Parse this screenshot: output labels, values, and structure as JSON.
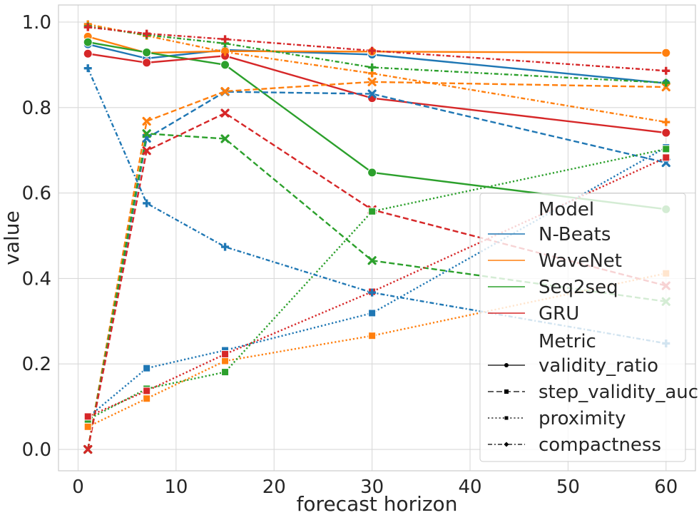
{
  "chart_data": {
    "type": "line",
    "title": "",
    "xlabel": "forecast horizon",
    "ylabel": "value",
    "x": [
      1,
      7,
      15,
      30,
      60
    ],
    "xlim": [
      -2,
      63
    ],
    "ylim": [
      -0.05,
      1.04
    ],
    "xticks": [
      0,
      10,
      20,
      30,
      40,
      50,
      60
    ],
    "yticks": [
      0.0,
      0.2,
      0.4,
      0.6,
      0.8,
      1.0
    ],
    "xtick_labels": [
      "0",
      "10",
      "20",
      "30",
      "40",
      "50",
      "60"
    ],
    "ytick_labels": [
      "0.0",
      "0.2",
      "0.4",
      "0.6",
      "0.8",
      "1.0"
    ],
    "grid": true,
    "legend_position": "right",
    "models": [
      {
        "name": "N-Beats",
        "color": "#1f77b4"
      },
      {
        "name": "WaveNet",
        "color": "#ff7f0e"
      },
      {
        "name": "Seq2seq",
        "color": "#2ca02c"
      },
      {
        "name": "GRU",
        "color": "#d62728"
      }
    ],
    "metrics": [
      {
        "name": "validity_ratio",
        "dash": "solid",
        "marker": "circle"
      },
      {
        "name": "step_validity_auc",
        "dash": "dashed",
        "marker": "x"
      },
      {
        "name": "proximity",
        "dash": "dotted",
        "marker": "square"
      },
      {
        "name": "compactness",
        "dash": "dashdot",
        "marker": "plus"
      }
    ],
    "series": [
      {
        "model": "N-Beats",
        "metric": "validity_ratio",
        "values": [
          0.948,
          0.915,
          0.935,
          0.924,
          0.857
        ]
      },
      {
        "model": "WaveNet",
        "metric": "validity_ratio",
        "values": [
          0.966,
          0.928,
          0.932,
          0.931,
          0.928
        ]
      },
      {
        "model": "Seq2seq",
        "metric": "validity_ratio",
        "values": [
          0.953,
          0.929,
          0.9,
          0.648,
          0.562
        ]
      },
      {
        "model": "GRU",
        "metric": "validity_ratio",
        "values": [
          0.926,
          0.905,
          0.921,
          0.822,
          0.741
        ]
      },
      {
        "model": "N-Beats",
        "metric": "step_validity_auc",
        "values": [
          0.0,
          0.728,
          0.837,
          0.832,
          0.671
        ]
      },
      {
        "model": "WaveNet",
        "metric": "step_validity_auc",
        "values": [
          0.0,
          0.768,
          0.838,
          0.86,
          0.848
        ]
      },
      {
        "model": "Seq2seq",
        "metric": "step_validity_auc",
        "values": [
          0.0,
          0.739,
          0.727,
          0.442,
          0.346
        ]
      },
      {
        "model": "GRU",
        "metric": "step_validity_auc",
        "values": [
          0.0,
          0.699,
          0.787,
          0.561,
          0.383
        ]
      },
      {
        "model": "N-Beats",
        "metric": "proximity",
        "values": [
          0.075,
          0.19,
          0.232,
          0.319,
          0.707
        ]
      },
      {
        "model": "WaveNet",
        "metric": "proximity",
        "values": [
          0.053,
          0.119,
          0.207,
          0.266,
          0.412
        ]
      },
      {
        "model": "Seq2seq",
        "metric": "proximity",
        "values": [
          0.07,
          0.142,
          0.181,
          0.557,
          0.703
        ]
      },
      {
        "model": "GRU",
        "metric": "proximity",
        "values": [
          0.077,
          0.137,
          0.223,
          0.369,
          0.683
        ]
      },
      {
        "model": "N-Beats",
        "metric": "compactness",
        "values": [
          0.892,
          0.576,
          0.474,
          0.367,
          0.248
        ]
      },
      {
        "model": "WaveNet",
        "metric": "compactness",
        "values": [
          0.995,
          0.968,
          0.93,
          0.88,
          0.766
        ]
      },
      {
        "model": "Seq2seq",
        "metric": "compactness",
        "values": [
          0.99,
          0.97,
          0.95,
          0.894,
          0.858
        ]
      },
      {
        "model": "GRU",
        "metric": "compactness",
        "values": [
          0.988,
          0.973,
          0.96,
          0.933,
          0.886
        ]
      }
    ],
    "legend": {
      "model_title": "Model",
      "metric_title": "Metric"
    }
  }
}
